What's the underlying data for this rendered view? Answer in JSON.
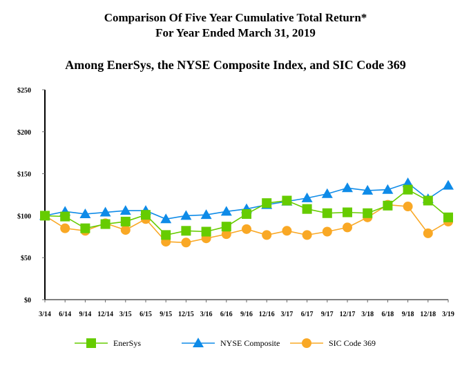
{
  "chart_data": {
    "type": "line",
    "title": "Comparison Of Five Year Cumulative Total Return*",
    "subtitle": "For Year Ended March 31, 2019",
    "subtitle2": "Among EnerSys, the NYSE Composite Index, and SIC Code 369",
    "categories": [
      "3/14",
      "6/14",
      "9/14",
      "12/14",
      "3/15",
      "6/15",
      "9/15",
      "12/15",
      "3/16",
      "6/16",
      "9/16",
      "12/16",
      "3/17",
      "6/17",
      "9/17",
      "12/17",
      "3/18",
      "6/18",
      "9/18",
      "12/18",
      "3/19"
    ],
    "yticks": [
      "$0",
      "$50",
      "$100",
      "$150",
      "$200",
      "$250"
    ],
    "ylim": [
      0,
      250
    ],
    "grid": false,
    "legend_position": "bottom",
    "series": [
      {
        "name": "EnerSys",
        "marker": "square",
        "color": "#66cc00",
        "values": [
          100,
          99,
          85,
          90,
          93,
          101,
          77,
          82,
          81,
          87,
          102,
          115,
          118,
          108,
          103,
          104,
          103,
          112,
          131,
          118,
          98
        ]
      },
      {
        "name": "NYSE Composite",
        "marker": "triangle",
        "color": "#0e8be8",
        "values": [
          100,
          105,
          102,
          104,
          106,
          106,
          96,
          100,
          101,
          105,
          108,
          113,
          117,
          121,
          126,
          133,
          130,
          131,
          139,
          120,
          136
        ]
      },
      {
        "name": "SIC Code 369",
        "marker": "circle",
        "color": "#f9a825",
        "values": [
          100,
          85,
          82,
          91,
          83,
          96,
          69,
          68,
          73,
          78,
          84,
          77,
          82,
          77,
          81,
          86,
          98,
          113,
          111,
          79,
          93
        ]
      }
    ]
  }
}
